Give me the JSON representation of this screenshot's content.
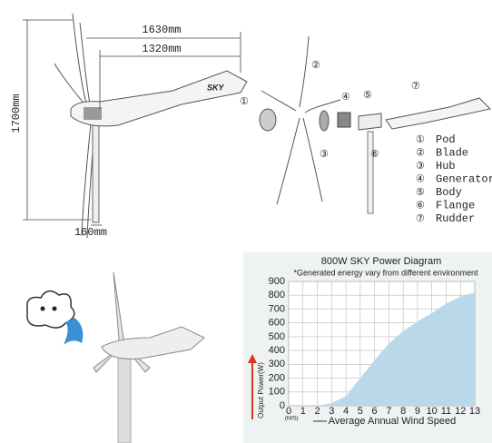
{
  "dimensions": {
    "width_total": "1630mm",
    "width_tail": "1320mm",
    "height": "1700mm",
    "tower": "160mm"
  },
  "parts": [
    {
      "number": "①",
      "name": "Pod"
    },
    {
      "number": "②",
      "name": "Blade"
    },
    {
      "number": "③",
      "name": "Hub"
    },
    {
      "number": "④",
      "name": "Generator"
    },
    {
      "number": "⑤",
      "name": "Body"
    },
    {
      "number": "⑥",
      "name": "Flange"
    },
    {
      "number": "⑦",
      "name": "Rudder"
    }
  ],
  "logo": "SKY",
  "chart_data": {
    "type": "area",
    "title": "800W SKY Power Diagram",
    "subtitle": "*Generated energy vary from different environment",
    "x_label": "Average Annual Wind Speed",
    "x_unit": "(M/S)",
    "y_label": "Output Power(W)",
    "x": [
      0,
      1,
      2,
      3,
      4,
      5,
      6,
      7,
      8,
      9,
      10,
      11,
      12,
      13
    ],
    "values": [
      0,
      0,
      0,
      20,
      70,
      200,
      330,
      450,
      540,
      610,
      670,
      740,
      790,
      820
    ],
    "color": "#b9d9ea",
    "xlim": [
      0,
      13
    ],
    "ylim": [
      0,
      900
    ],
    "xticks": [
      0,
      1,
      2,
      3,
      4,
      5,
      6,
      7,
      8,
      9,
      10,
      11,
      12,
      13
    ],
    "yticks": [
      0,
      100,
      200,
      300,
      400,
      500,
      600,
      700,
      800,
      900
    ],
    "grid": true
  }
}
